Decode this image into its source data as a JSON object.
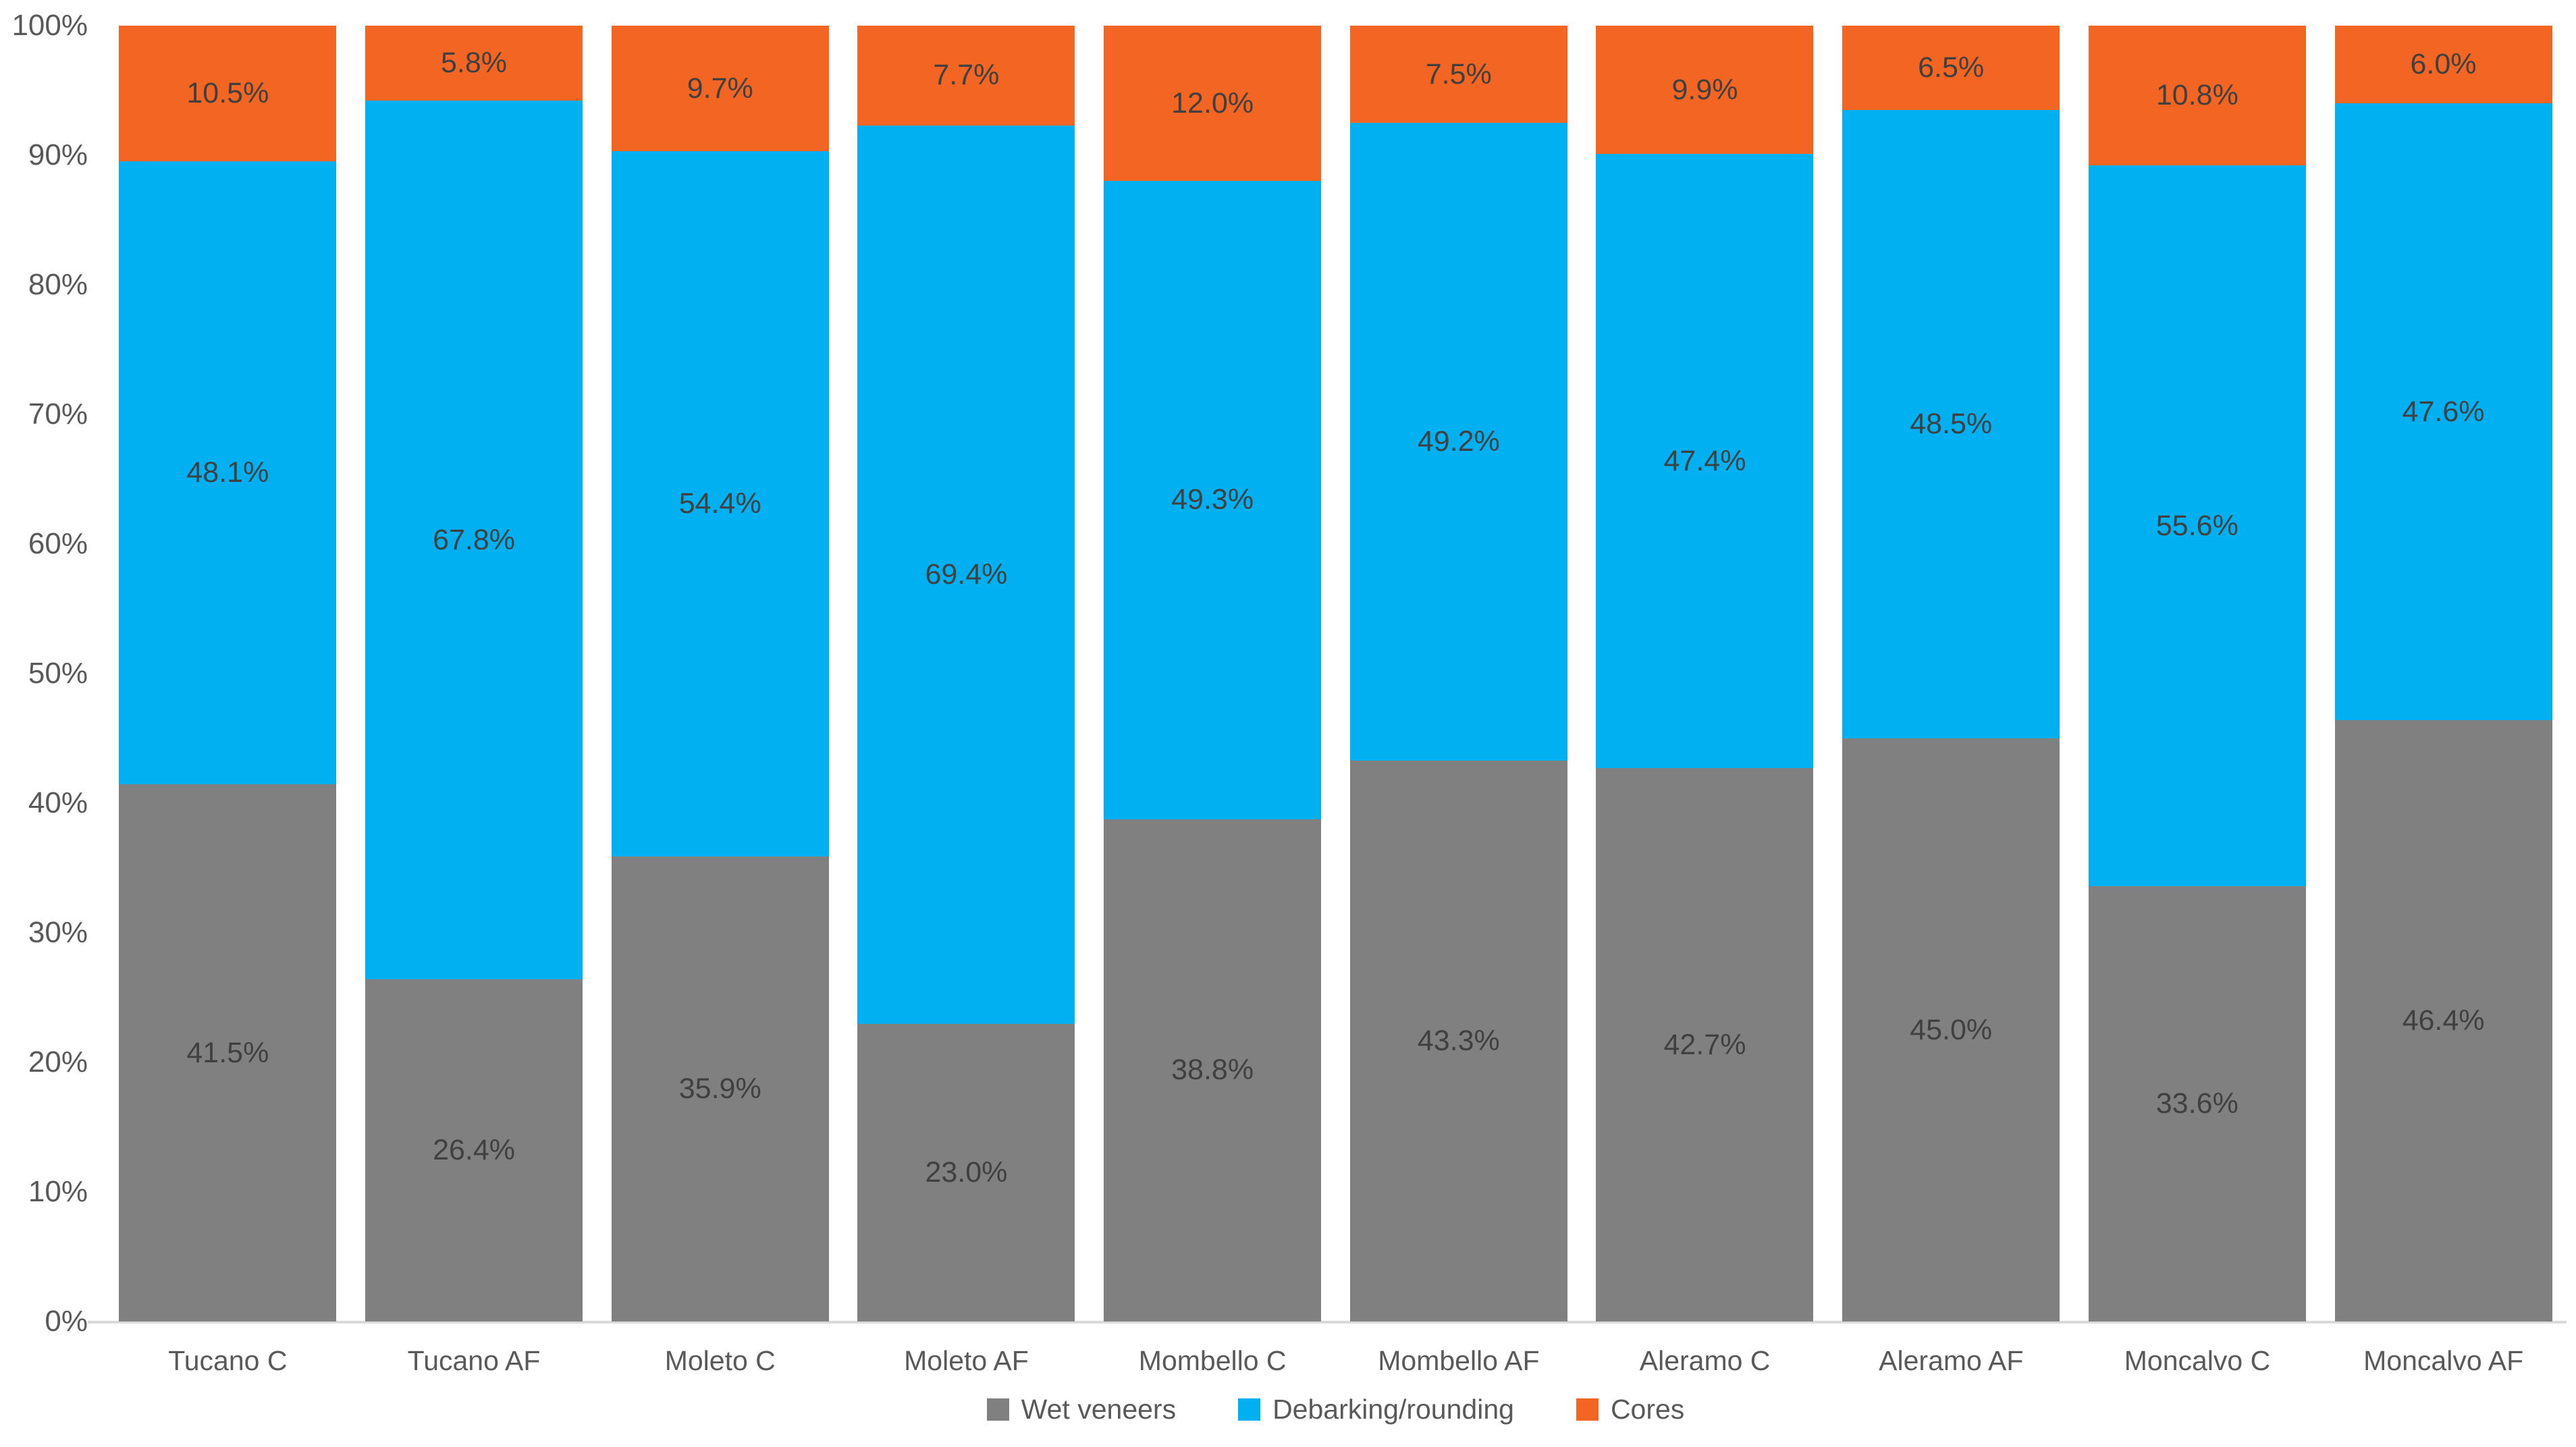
{
  "chart_data": {
    "type": "bar",
    "variant": "stacked-100-percent",
    "title": "",
    "xlabel": "",
    "ylabel": "",
    "ylim": [
      0,
      100
    ],
    "grid": false,
    "legend_position": "bottom",
    "y_ticks": [
      "0%",
      "10%",
      "20%",
      "30%",
      "40%",
      "50%",
      "60%",
      "70%",
      "80%",
      "90%",
      "100%"
    ],
    "categories": [
      "Tucano C",
      "Tucano AF",
      "Moleto C",
      "Moleto AF",
      "Mombello C",
      "Mombello AF",
      "Aleramo C",
      "Aleramo AF",
      "Moncalvo C",
      "Moncalvo AF"
    ],
    "series": [
      {
        "name": "Wet veneers",
        "color": "#808080",
        "values": [
          41.5,
          26.4,
          35.9,
          23.0,
          38.8,
          43.3,
          42.7,
          45.0,
          33.6,
          46.4
        ]
      },
      {
        "name": "Debarking/rounding",
        "color": "#00B0F0",
        "values": [
          48.1,
          67.8,
          54.4,
          69.4,
          49.3,
          49.2,
          47.4,
          48.5,
          55.6,
          47.6
        ]
      },
      {
        "name": "Cores",
        "color": "#F26522",
        "values": [
          10.5,
          5.8,
          9.7,
          7.7,
          12.0,
          7.5,
          9.9,
          6.5,
          10.8,
          6.0
        ]
      }
    ],
    "data_label_format": "0.0%"
  },
  "colors": {
    "axis_text": "#595959",
    "data_label_text": "#404040",
    "axis_line": "#d9d9d9",
    "background": "#ffffff"
  }
}
